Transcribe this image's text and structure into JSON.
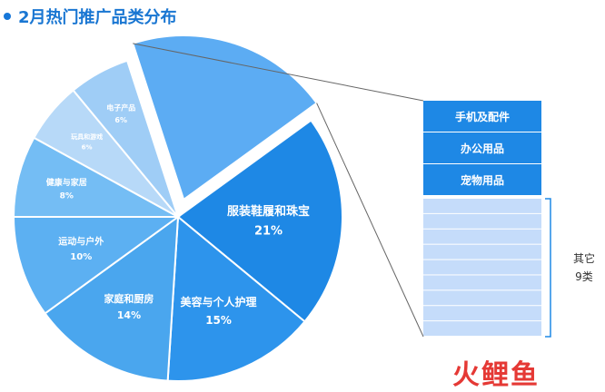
{
  "title": "2月热门推广品类分布",
  "brand": "火鲤鱼",
  "colors": {
    "accent": "#1976d2",
    "bar_dark": "#1e88e5",
    "bar_light": "#c5dcfa"
  },
  "chart_data": {
    "type": "pie",
    "slices": [
      {
        "name": "服装鞋履和珠宝",
        "value": 21,
        "label": "21%",
        "color": "#1e88e5"
      },
      {
        "name": "美容与个人护理",
        "value": 15,
        "label": "15%",
        "color": "#2d94ec"
      },
      {
        "name": "家庭和厨房",
        "value": 14,
        "label": "14%",
        "color": "#4aa6ee"
      },
      {
        "name": "运动与户外",
        "value": 10,
        "label": "10%",
        "color": "#5cb0f2"
      },
      {
        "name": "健康与家居",
        "value": 8,
        "label": "8%",
        "color": "#74bdf4"
      },
      {
        "name": "玩具和游戏",
        "value": 6,
        "label": "6%",
        "color": "#b7d9f8"
      },
      {
        "name": "电子产品",
        "value": 6,
        "label": "6%",
        "color": "#9fcdf6"
      },
      {
        "name": "其它",
        "value": 20,
        "label": "",
        "color": "#5cacf3",
        "exploded": true
      }
    ],
    "breakdown": {
      "named": [
        "手机及配件",
        "办公用品",
        "宠物用品"
      ],
      "other_label": "其它",
      "other_count": "9类",
      "other_rows": 9
    }
  }
}
